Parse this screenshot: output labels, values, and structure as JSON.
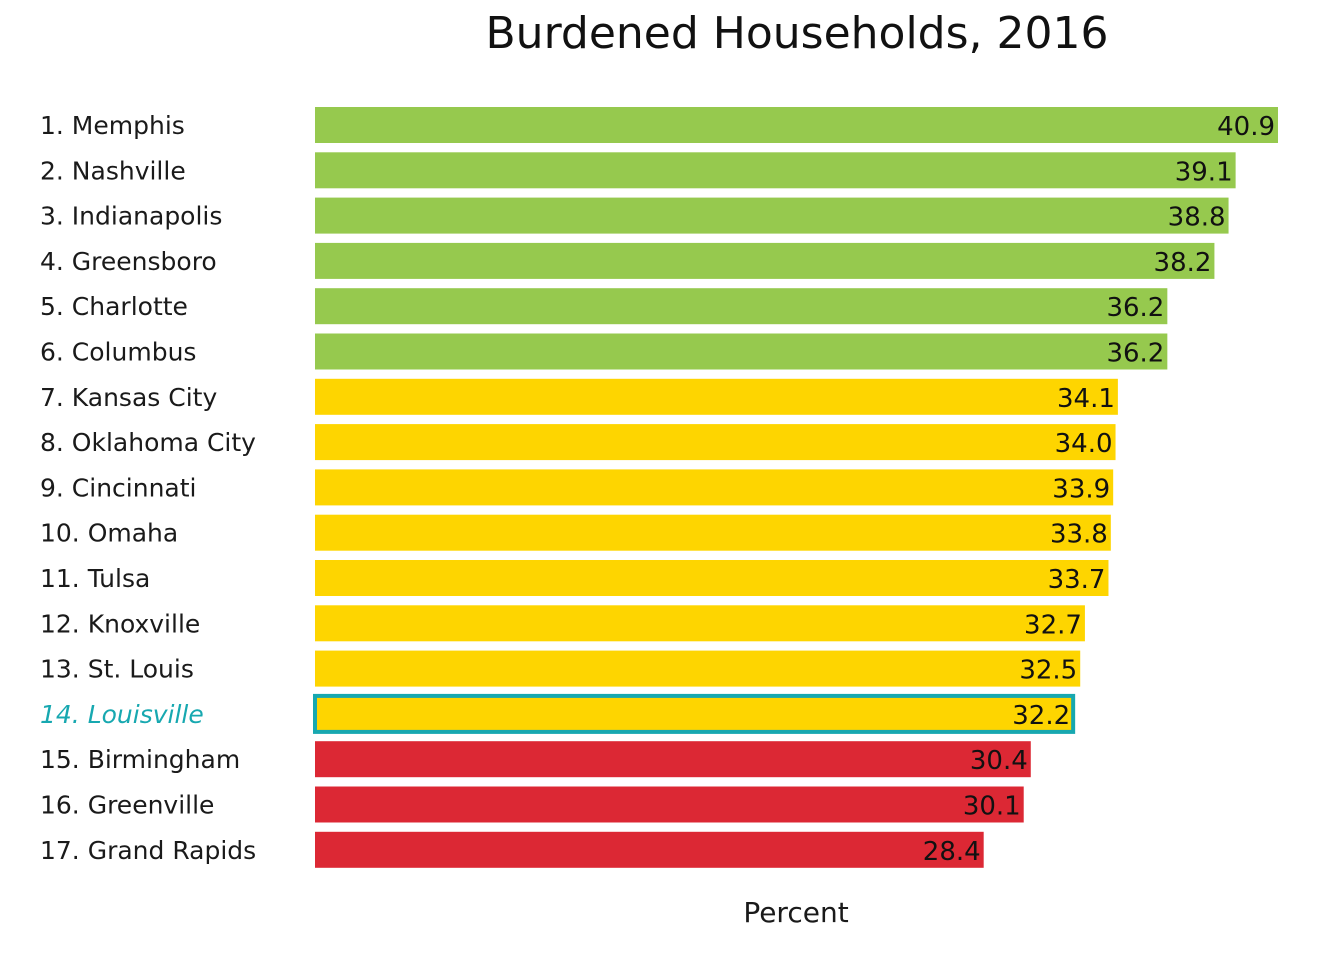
{
  "chart_data": {
    "type": "bar",
    "orientation": "horizontal",
    "title": "Burdened Households, 2016",
    "xlabel": "Percent",
    "ylabel": "",
    "xlim": [
      0,
      40.9
    ],
    "grid": false,
    "legend": "none",
    "categories": [
      "1. Memphis",
      "2. Nashville",
      "3. Indianapolis",
      "4. Greensboro",
      "5. Charlotte",
      "6. Columbus",
      "7. Kansas City",
      "8. Oklahoma City",
      "9. Cincinnati",
      "10. Omaha",
      "11. Tulsa",
      "12. Knoxville",
      "13. St. Louis",
      "14. Louisville",
      "15. Birmingham",
      "16. Greenville",
      "17. Grand Rapids"
    ],
    "values": [
      40.9,
      39.1,
      38.8,
      38.2,
      36.2,
      36.2,
      34.1,
      34.0,
      33.9,
      33.8,
      33.7,
      32.7,
      32.5,
      32.2,
      30.4,
      30.1,
      28.4
    ],
    "value_labels": [
      "40.9",
      "39.1",
      "38.8",
      "38.2",
      "36.2",
      "36.2",
      "34.1",
      "34.0",
      "33.9",
      "33.8",
      "33.7",
      "32.7",
      "32.5",
      "32.2",
      "30.4",
      "30.1",
      "28.4"
    ],
    "tiers": [
      "top",
      "top",
      "top",
      "top",
      "top",
      "top",
      "mid",
      "mid",
      "mid",
      "mid",
      "mid",
      "mid",
      "mid",
      "mid",
      "low",
      "low",
      "low"
    ],
    "highlight": "14. Louisville",
    "colors": {
      "top": "#96c94e",
      "mid": "#fed500",
      "low": "#dc2834",
      "highlight_outline": "#17a8b0",
      "highlight_text": "#17a8b0"
    }
  }
}
